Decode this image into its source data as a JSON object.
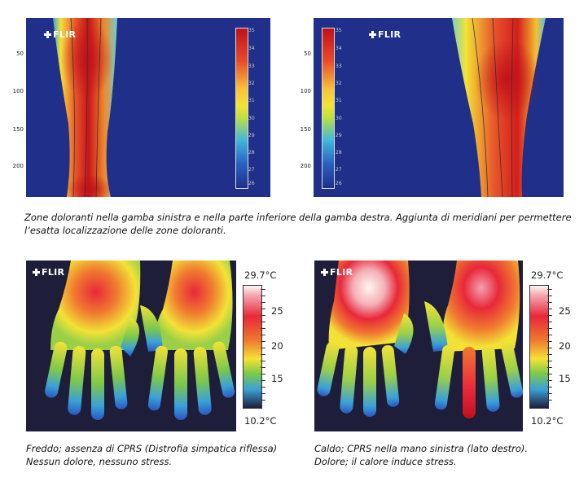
{
  "brand": "FLIR",
  "leg_figures": {
    "y_ticks": [
      "50",
      "100",
      "150",
      "200"
    ],
    "scale_labels": [
      "35",
      "34",
      "33",
      "32",
      "31",
      "30",
      "29",
      "28",
      "27",
      "26"
    ],
    "caption_line1": "Zone doloranti nella gamba sinistra e nella parte inferiore della gamba destra. Aggiunta di meridiani per permettere",
    "caption_line2": "l’esatta localizzazione delle zone doloranti."
  },
  "hand_left": {
    "max_label": "29.7°C",
    "min_label": "10.2°C",
    "ticks": [
      "25",
      "20",
      "15"
    ],
    "caption_line1": "Freddo; assenza di CPRS (Distrofia simpatica riflessa)",
    "caption_line2": "Nessun dolore, nessuno stress."
  },
  "hand_right": {
    "max_label": "29.7°C",
    "min_label": "10.2°C",
    "ticks": [
      "25",
      "20",
      "15"
    ],
    "caption_line1": "Caldo; CPRS nella mano sinistra (lato destro).",
    "caption_line2": "Dolore; il calore induce stress."
  },
  "colors": {
    "background_cold": "#1f2f8a",
    "hot": "#d11a1a",
    "warm": "#f3e236"
  }
}
